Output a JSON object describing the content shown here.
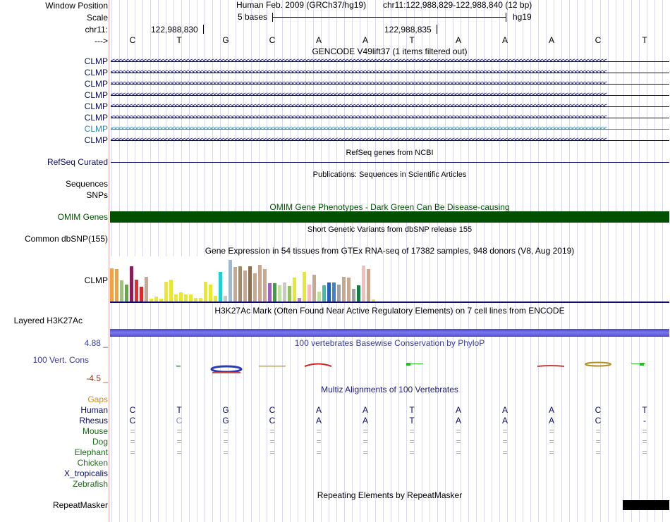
{
  "header": {
    "window_position_label": "Window Position",
    "scale_label": "Scale",
    "chrom_label": "chr11:",
    "strand_label": "--->",
    "assembly_text": "Human Feb. 2009 (GRCh37/hg19)",
    "position_text": "chr11:122,988,829-122,988,840 (12 bp)",
    "scale_text": "5 bases",
    "db_text": "hg19",
    "coord_left": "122,988,830",
    "coord_right": "122,988,835"
  },
  "sequence": [
    "C",
    "T",
    "G",
    "C",
    "A",
    "A",
    "T",
    "A",
    "A",
    "A",
    "C",
    "T"
  ],
  "gencode": {
    "title": "GENCODE V49lift37 (1 items filtered out)",
    "items": [
      "CLMP",
      "CLMP",
      "CLMP",
      "CLMP",
      "CLMP",
      "CLMP",
      "CLMP",
      "CLMP"
    ],
    "colors": [
      "#0b0b6a",
      "#0b0b6a",
      "#0b0b6a",
      "#0b0b6a",
      "#0b0b6a",
      "#0b0b6a",
      "#2a8ab4",
      "#0b0b6a"
    ]
  },
  "refseq": {
    "title": "RefSeq genes from NCBI",
    "label": "RefSeq Curated"
  },
  "publications": {
    "title": "Publications: Sequences in Scientific Articles",
    "label_sequences": "Sequences",
    "label_snps": "SNPs"
  },
  "omim": {
    "title": "OMIM Gene Phenotypes - Dark Green Can Be Disease-causing",
    "label": "OMIM Genes",
    "color": "#005000"
  },
  "dbsnp": {
    "title": "Short Genetic Variants from dbSNP release 155",
    "label": "Common dbSNP(155)"
  },
  "gtex": {
    "title": "Gene Expression in 54 tissues from GTEx RNA-seq of 17382 samples, 948 donors (V8, Aug 2019)",
    "label": "CLMP",
    "bars": [
      {
        "v": 0.78,
        "c": "#f5a040"
      },
      {
        "v": 0.76,
        "c": "#f2a13c"
      },
      {
        "v": 0.5,
        "c": "#a0c080"
      },
      {
        "v": 0.4,
        "c": "#60a848"
      },
      {
        "v": 0.84,
        "c": "#8c1c5a"
      },
      {
        "v": 0.52,
        "c": "#e03030"
      },
      {
        "v": 0.35,
        "c": "#e02828"
      },
      {
        "v": 0.58,
        "c": "#c8a890"
      },
      {
        "v": 0.07,
        "c": "#e8e830"
      },
      {
        "v": 0.11,
        "c": "#e8e830"
      },
      {
        "v": 0.06,
        "c": "#e8e830"
      },
      {
        "v": 0.47,
        "c": "#e8e830"
      },
      {
        "v": 0.52,
        "c": "#e8e830"
      },
      {
        "v": 0.16,
        "c": "#e8e830"
      },
      {
        "v": 0.21,
        "c": "#e8e830"
      },
      {
        "v": 0.17,
        "c": "#e8e830"
      },
      {
        "v": 0.17,
        "c": "#e8e830"
      },
      {
        "v": 0.09,
        "c": "#e8e830"
      },
      {
        "v": 0.09,
        "c": "#e8e830"
      },
      {
        "v": 0.46,
        "c": "#e8e830"
      },
      {
        "v": 0.4,
        "c": "#e8e830"
      },
      {
        "v": 0.13,
        "c": "#e8e830"
      },
      {
        "v": 0.7,
        "c": "#20d0d0"
      },
      {
        "v": 0.14,
        "c": "#c8c8c8"
      },
      {
        "v": 0.98,
        "c": "#a0b8d0"
      },
      {
        "v": 0.82,
        "c": "#c8a890"
      },
      {
        "v": 0.84,
        "c": "#a08a70"
      },
      {
        "v": 0.74,
        "c": "#c8a890"
      },
      {
        "v": 0.83,
        "c": "#8c7050"
      },
      {
        "v": 0.66,
        "c": "#c8a890"
      },
      {
        "v": 0.87,
        "c": "#c8a890"
      },
      {
        "v": 0.76,
        "c": "#c8a890"
      },
      {
        "v": 0.43,
        "c": "#a060c0"
      },
      {
        "v": 0.43,
        "c": "#40a040"
      },
      {
        "v": 0.38,
        "c": "#c0e0a0"
      },
      {
        "v": 0.45,
        "c": "#c8c8c8"
      },
      {
        "v": 0.36,
        "c": "#90c060"
      },
      {
        "v": 0.57,
        "c": "#e8e830"
      },
      {
        "v": 0.09,
        "c": "#c080c0"
      },
      {
        "v": 0.7,
        "c": "#e8e830"
      },
      {
        "v": 0.4,
        "c": "#f8b8c0"
      },
      {
        "v": 0.64,
        "c": "#c8a890"
      },
      {
        "v": 0.24,
        "c": "#c0e0a0"
      },
      {
        "v": 0.39,
        "c": "#40c0a0"
      },
      {
        "v": 0.45,
        "c": "#2060c0"
      },
      {
        "v": 0.45,
        "c": "#4080d0"
      },
      {
        "v": 0.4,
        "c": "#a0a0a0"
      },
      {
        "v": 0.58,
        "c": "#c8a890"
      },
      {
        "v": 0.57,
        "c": "#c8a890"
      },
      {
        "v": 0.3,
        "c": "#a0a0a0"
      },
      {
        "v": 0.38,
        "c": "#108040"
      },
      {
        "v": 0.85,
        "c": "#f0c0c0"
      },
      {
        "v": 0.76,
        "c": "#c8a890"
      },
      {
        "v": 0.05,
        "c": "#e8e830"
      }
    ]
  },
  "h3k27ac": {
    "title": "H3K27Ac Mark (Often Found Near Active Regulatory Elements) on 7 cell lines from ENCODE",
    "label": "Layered H3K27Ac"
  },
  "phylop": {
    "title": "100 vertebrates Basewise Conservation by PhyloP",
    "label": "100 Vert. Cons",
    "max": "4.88 _",
    "min": "-4.5 _"
  },
  "multiz": {
    "title": "Multiz Alignments of 100 Vertebrates",
    "gaps_label": "Gaps",
    "species": [
      {
        "name": "Human",
        "color": "#0b0b6a",
        "bases": [
          "C",
          "T",
          "G",
          "C",
          "A",
          "A",
          "T",
          "A",
          "A",
          "A",
          "C",
          "T"
        ]
      },
      {
        "name": "Rhesus",
        "color": "#0b0b6a",
        "bases": [
          "C",
          "C",
          "G",
          "C",
          "A",
          "A",
          "T",
          "A",
          "A",
          "A",
          "C",
          "-"
        ]
      },
      {
        "name": "Mouse",
        "color": "#1a6a1a",
        "bases": [
          "=",
          "=",
          "=",
          "=",
          "=",
          "=",
          "=",
          "=",
          "=",
          "=",
          "=",
          "="
        ]
      },
      {
        "name": "Dog",
        "color": "#1a6a1a",
        "bases": [
          "=",
          "=",
          "=",
          "=",
          "=",
          "=",
          "=",
          "=",
          "=",
          "=",
          "=",
          "="
        ]
      },
      {
        "name": "Elephant",
        "color": "#1a6a1a",
        "bases": [
          "=",
          "=",
          "=",
          "=",
          "=",
          "=",
          "=",
          "=",
          "=",
          "=",
          "=",
          "="
        ]
      },
      {
        "name": "Chicken",
        "color": "#1a6a1a",
        "bases": []
      },
      {
        "name": "X_tropicalis",
        "color": "#0b0b6a",
        "bases": []
      },
      {
        "name": "Zebrafish",
        "color": "#1a6a1a",
        "bases": []
      }
    ]
  },
  "repeatmasker": {
    "title": "Repeating Elements by RepeatMasker",
    "label": "RepeatMasker"
  },
  "colors": {
    "label_blue": "#0b0b6a",
    "divider": "#e7a9a9",
    "gridline": "#d9d9f3",
    "conservation": "#3a3aa0",
    "gaps": "#d88a1a"
  }
}
